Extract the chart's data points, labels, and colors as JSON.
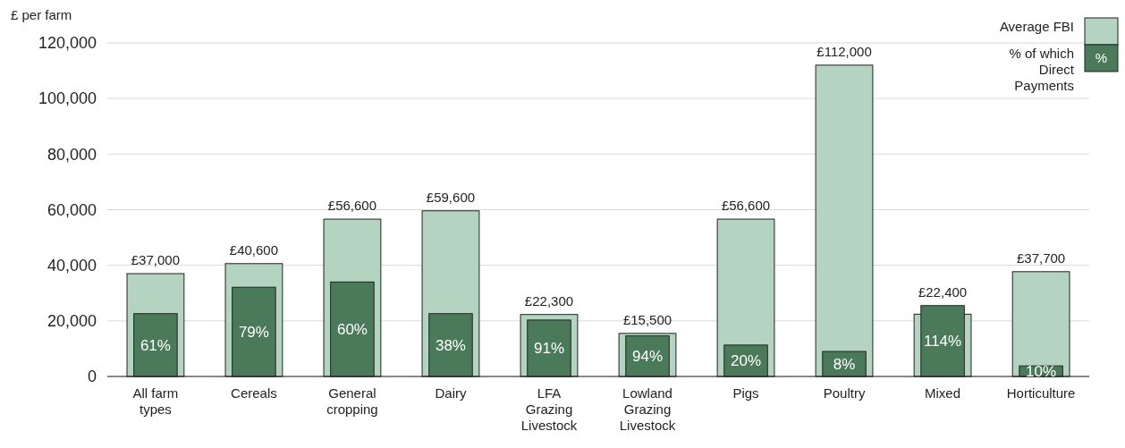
{
  "chart_data": {
    "type": "bar",
    "ylabel": "£ per farm",
    "categories": [
      "All farm types",
      "Cereals",
      "General cropping",
      "Dairy",
      "LFA Grazing Livestock",
      "Lowland Grazing Livestock",
      "Pigs",
      "Poultry",
      "Mixed",
      "Horticulture"
    ],
    "series": [
      {
        "name": "Average FBI",
        "color": "#b4d3c1",
        "values": [
          37000,
          40600,
          56600,
          59600,
          22300,
          15500,
          56600,
          112000,
          22400,
          37700
        ],
        "value_labels": [
          "£37,000",
          "£40,600",
          "£56,600",
          "£59,600",
          "£22,300",
          "£15,500",
          "£56,600",
          "£112,000",
          "£22,400",
          "£37,700"
        ]
      },
      {
        "name": "% of which Direct Payments",
        "color": "#4b7a5b",
        "values": [
          22600,
          32100,
          34000,
          22600,
          20300,
          14600,
          11300,
          9000,
          25500,
          3800
        ]
      }
    ],
    "ylim": [
      0,
      120000
    ],
    "yticks": [
      {
        "value": 0,
        "label": "0"
      },
      {
        "value": 20000,
        "label": "20,000"
      },
      {
        "value": 40000,
        "label": "40,000"
      },
      {
        "value": 60000,
        "label": "60,000"
      },
      {
        "value": 80000,
        "label": "80,000"
      },
      {
        "value": 100000,
        "label": "100,000"
      },
      {
        "value": 120000,
        "label": "120,000"
      }
    ],
    "grid": "y",
    "legend": "top right",
    "annotations": [
      "%",
      {
        "text": "61%",
        "x": "All farm types",
        "y": 22600
      },
      {
        "text": "79%",
        "x": "Cereals",
        "y": 32100
      },
      {
        "text": "60%",
        "x": "General cropping",
        "y": 34000
      },
      {
        "text": "38%",
        "x": "Dairy",
        "y": 22600
      },
      {
        "text": "91%",
        "x": "LFA Grazing Livestock",
        "y": 20300
      },
      {
        "text": "94%",
        "x": "Lowland Grazing Livestock",
        "y": 14600
      },
      {
        "text": "20%",
        "x": "Pigs",
        "y": 11300
      },
      {
        "text": "8%",
        "x": "Poultry",
        "y": 9000
      },
      {
        "text": "114%",
        "x": "Mixed",
        "y": 25500
      },
      {
        "text": "10%",
        "x": "Horticulture",
        "y": 3800
      }
    ]
  }
}
